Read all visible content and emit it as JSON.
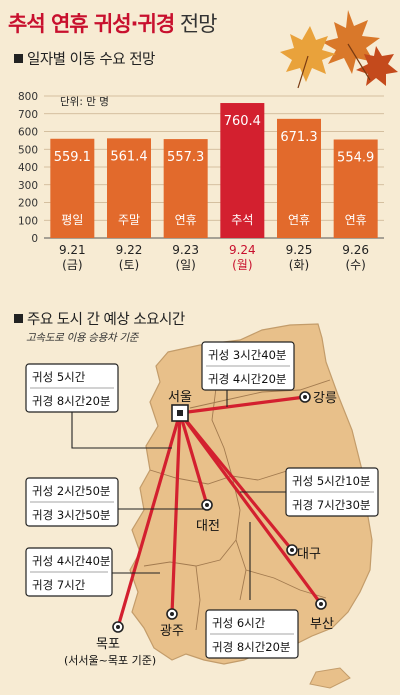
{
  "title": {
    "accent": "추석 연휴 귀성·귀경",
    "rest": " 전망"
  },
  "section1": {
    "label": "일자별 이동 수요 전망"
  },
  "section2": {
    "label": "주요 도시 간 예상 소요시간",
    "note": "고속도로 이용 승용차 기준"
  },
  "chart_data": {
    "type": "bar",
    "unit_label": "단위: 만 명",
    "ylim": [
      0,
      800
    ],
    "yticks": [
      "0",
      "100",
      "200",
      "300",
      "400",
      "500",
      "600",
      "700",
      "800"
    ],
    "categories": [
      "9.21 (금)",
      "9.22 (토)",
      "9.23 (일)",
      "9.24 (월)",
      "9.25 (화)",
      "9.26 (수)"
    ],
    "dates": [
      "9.21",
      "9.22",
      "9.23",
      "9.24",
      "9.25",
      "9.26"
    ],
    "days": [
      "(금)",
      "(토)",
      "(일)",
      "(월)",
      "(화)",
      "(수)"
    ],
    "bar_labels": [
      "평일",
      "주말",
      "연휴",
      "추석",
      "연휴",
      "연휴"
    ],
    "values": [
      559.1,
      561.4,
      557.3,
      760.4,
      671.3,
      554.9
    ],
    "value_texts": [
      "559.1",
      "561.4",
      "557.3",
      "760.4",
      "671.3",
      "554.9"
    ],
    "highlight_index": 3,
    "colors": {
      "bar": "#e26a2c",
      "highlight": "#d3202f",
      "highlight_text": "#c8102e"
    }
  },
  "map": {
    "origin": "서울",
    "cities": {
      "gangneung": "강릉",
      "daejeon": "대전",
      "daegu": "대구",
      "busan": "부산",
      "gwangju": "광주",
      "mokpo": "목포"
    },
    "mokpo_note": "(서서울~목포 기준)",
    "time_labels": {
      "gangneung": {
        "go": "귀성 3시간40분",
        "back": "귀경 4시간20분"
      },
      "daejeon": {
        "go": "귀성 2시간50분",
        "back": "귀경 3시간50분"
      },
      "gwangju": {
        "go": "귀성 4시간40분",
        "back": "귀경 7시간"
      },
      "daegu": {
        "go": "귀성 5시간10분",
        "back": "귀경 7시간30분"
      },
      "busan": {
        "go": "귀성 6시간",
        "back": "귀경 8시간20분"
      },
      "mokpo": {
        "go": "귀성 5시간",
        "back": "귀경 8시간20분"
      }
    },
    "colors": {
      "land": "#e8c08a",
      "border": "#a27a4f",
      "route": "#d3202f"
    }
  }
}
